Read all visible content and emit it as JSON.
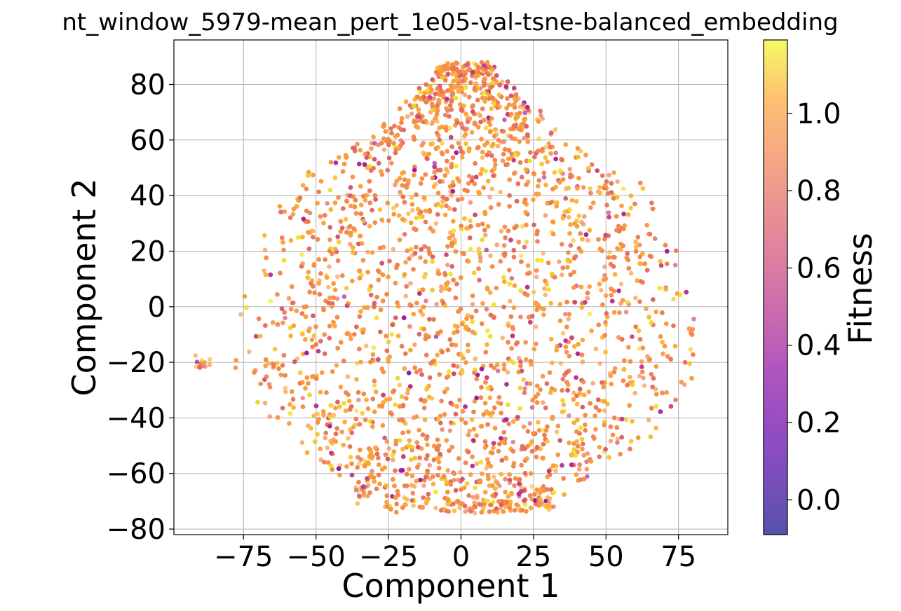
{
  "chart_data": {
    "type": "scatter",
    "title": "nt_window_5979-mean_pert_1e05-val-tsne-balanced_embedding",
    "xlabel": "Component 1",
    "ylabel": "Component 2",
    "xlim": [
      -99,
      92
    ],
    "ylim": [
      -82,
      96
    ],
    "xticks": [
      -75,
      -50,
      -25,
      0,
      25,
      50,
      75
    ],
    "yticks": [
      -80,
      -60,
      -40,
      -20,
      0,
      20,
      40,
      60,
      80
    ],
    "xtick_labels": [
      "−75",
      "−50",
      "−25",
      "0",
      "25",
      "50",
      "75"
    ],
    "ytick_labels": [
      "−80",
      "−60",
      "−40",
      "−20",
      "0",
      "20",
      "40",
      "60",
      "80"
    ],
    "grid": true,
    "colorbar": {
      "label": "Fitness",
      "range": [
        -0.09,
        1.19
      ],
      "ticks": [
        0.0,
        0.2,
        0.4,
        0.6,
        0.8,
        1.0
      ],
      "tick_labels": [
        "0.0",
        "0.2",
        "0.4",
        "0.6",
        "0.8",
        "1.0"
      ],
      "colormap": "plasma",
      "alpha": 0.7
    },
    "colors": {
      "grid": "#b0b0b0",
      "axes": "#000000",
      "background": "#ffffff"
    },
    "point_count": 6000,
    "cluster_outliers": [
      {
        "x": -89,
        "y": -20
      },
      {
        "x": -34,
        "y": -67
      },
      {
        "x": 30,
        "y": -71
      },
      {
        "x": 6,
        "y": -71
      }
    ],
    "fitness_summary": {
      "typical": 0.95,
      "spread": 0.1,
      "low_value_fraction": 0.1
    }
  }
}
